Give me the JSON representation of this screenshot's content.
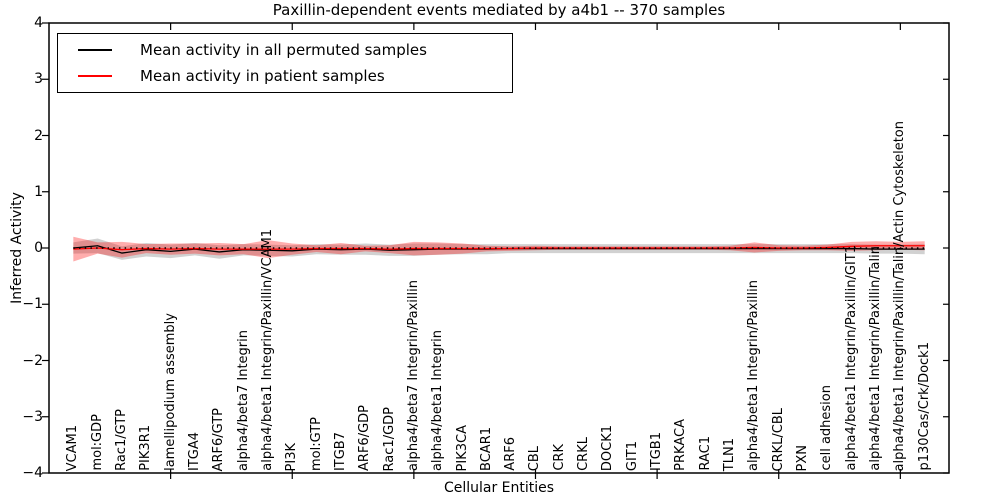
{
  "chart_data": {
    "type": "line",
    "title": "Paxillin-dependent events mediated by a4b1 -- 370 samples",
    "xlabel": "Cellular Entities",
    "ylabel": "Inferred Activity",
    "ylim": [
      -4,
      4
    ],
    "yticks": [
      -4,
      -3,
      -2,
      -1,
      0,
      1,
      2,
      3,
      4
    ],
    "ytick_labels": [
      "−4",
      "−3",
      "−2",
      "−1",
      "0",
      "1",
      "2",
      "3",
      "4"
    ],
    "xticks": [
      5,
      10,
      15,
      20,
      25,
      30,
      35
    ],
    "grid": false,
    "legend_position": "upper left",
    "zero_reference_line": true,
    "categories": [
      "VCAM1",
      "mol:GDP",
      "Rac1/GTP",
      "PIK3R1",
      "lamellipodium assembly",
      "ITGA4",
      "ARF6/GTP",
      "alpha4/beta7 Integrin",
      "alpha4/beta1 Integrin/Paxillin/VCAM1",
      "PI3K",
      "mol:GTP",
      "ITGB7",
      "ARF6/GDP",
      "Rac1/GDP",
      "alpha4/beta7 Integrin/Paxillin",
      "alpha4/beta1 Integrin",
      "PIK3CA",
      "BCAR1",
      "ARF6",
      "CBL",
      "CRK",
      "CRKL",
      "DOCK1",
      "GIT1",
      "ITGB1",
      "PRKACA",
      "RAC1",
      "TLN1",
      "alpha4/beta1 Integrin/Paxillin",
      "CRKL/CBL",
      "PXN",
      "cell adhesion",
      "alpha4/beta1 Integrin/Paxillin/GIT1",
      "alpha4/beta1 Integrin/Paxillin/Talin",
      "alpha4/beta1 Integrin/Paxillin/Talin/Actin Cytoskeleton",
      "p130Cas/Crk/Dock1"
    ],
    "series": [
      {
        "name": "Mean activity in all permuted samples",
        "color": "#000000",
        "band_color": "#999999",
        "band_opacity": 0.45,
        "values": [
          0.0,
          0.04,
          -0.09,
          -0.03,
          -0.06,
          -0.02,
          -0.07,
          -0.03,
          -0.04,
          -0.05,
          -0.02,
          -0.03,
          -0.02,
          -0.04,
          -0.03,
          -0.02,
          -0.02,
          -0.02,
          -0.01,
          -0.01,
          -0.01,
          -0.01,
          -0.01,
          -0.01,
          -0.01,
          -0.01,
          -0.01,
          -0.01,
          -0.01,
          -0.01,
          -0.01,
          -0.01,
          -0.01,
          -0.02,
          -0.02,
          -0.02
        ],
        "band": [
          0.1,
          0.13,
          0.12,
          0.12,
          0.12,
          0.11,
          0.12,
          0.1,
          0.1,
          0.1,
          0.09,
          0.09,
          0.1,
          0.1,
          0.11,
          0.1,
          0.09,
          0.09,
          0.08,
          0.08,
          0.08,
          0.08,
          0.08,
          0.08,
          0.08,
          0.08,
          0.08,
          0.08,
          0.08,
          0.08,
          0.08,
          0.08,
          0.08,
          0.08,
          0.08,
          0.09
        ]
      },
      {
        "name": "Mean activity in patient samples",
        "color": "#ff0000",
        "band_color": "#ff0000",
        "band_opacity": 0.32,
        "values": [
          -0.02,
          0.0,
          -0.03,
          -0.01,
          -0.02,
          -0.01,
          -0.02,
          -0.02,
          -0.02,
          -0.02,
          -0.01,
          -0.01,
          -0.01,
          -0.02,
          -0.01,
          -0.01,
          -0.01,
          -0.01,
          -0.01,
          0.0,
          0.0,
          0.0,
          0.0,
          0.0,
          0.0,
          0.0,
          0.0,
          0.0,
          0.01,
          0.0,
          0.0,
          0.01,
          0.03,
          0.04,
          0.04,
          0.04
        ],
        "band": [
          0.22,
          0.1,
          0.14,
          0.08,
          0.1,
          0.09,
          0.11,
          0.09,
          0.16,
          0.1,
          0.06,
          0.1,
          0.05,
          0.07,
          0.12,
          0.11,
          0.09,
          0.05,
          0.04,
          0.04,
          0.03,
          0.03,
          0.03,
          0.03,
          0.03,
          0.03,
          0.03,
          0.04,
          0.09,
          0.05,
          0.04,
          0.05,
          0.08,
          0.08,
          0.07,
          0.08
        ]
      }
    ]
  }
}
